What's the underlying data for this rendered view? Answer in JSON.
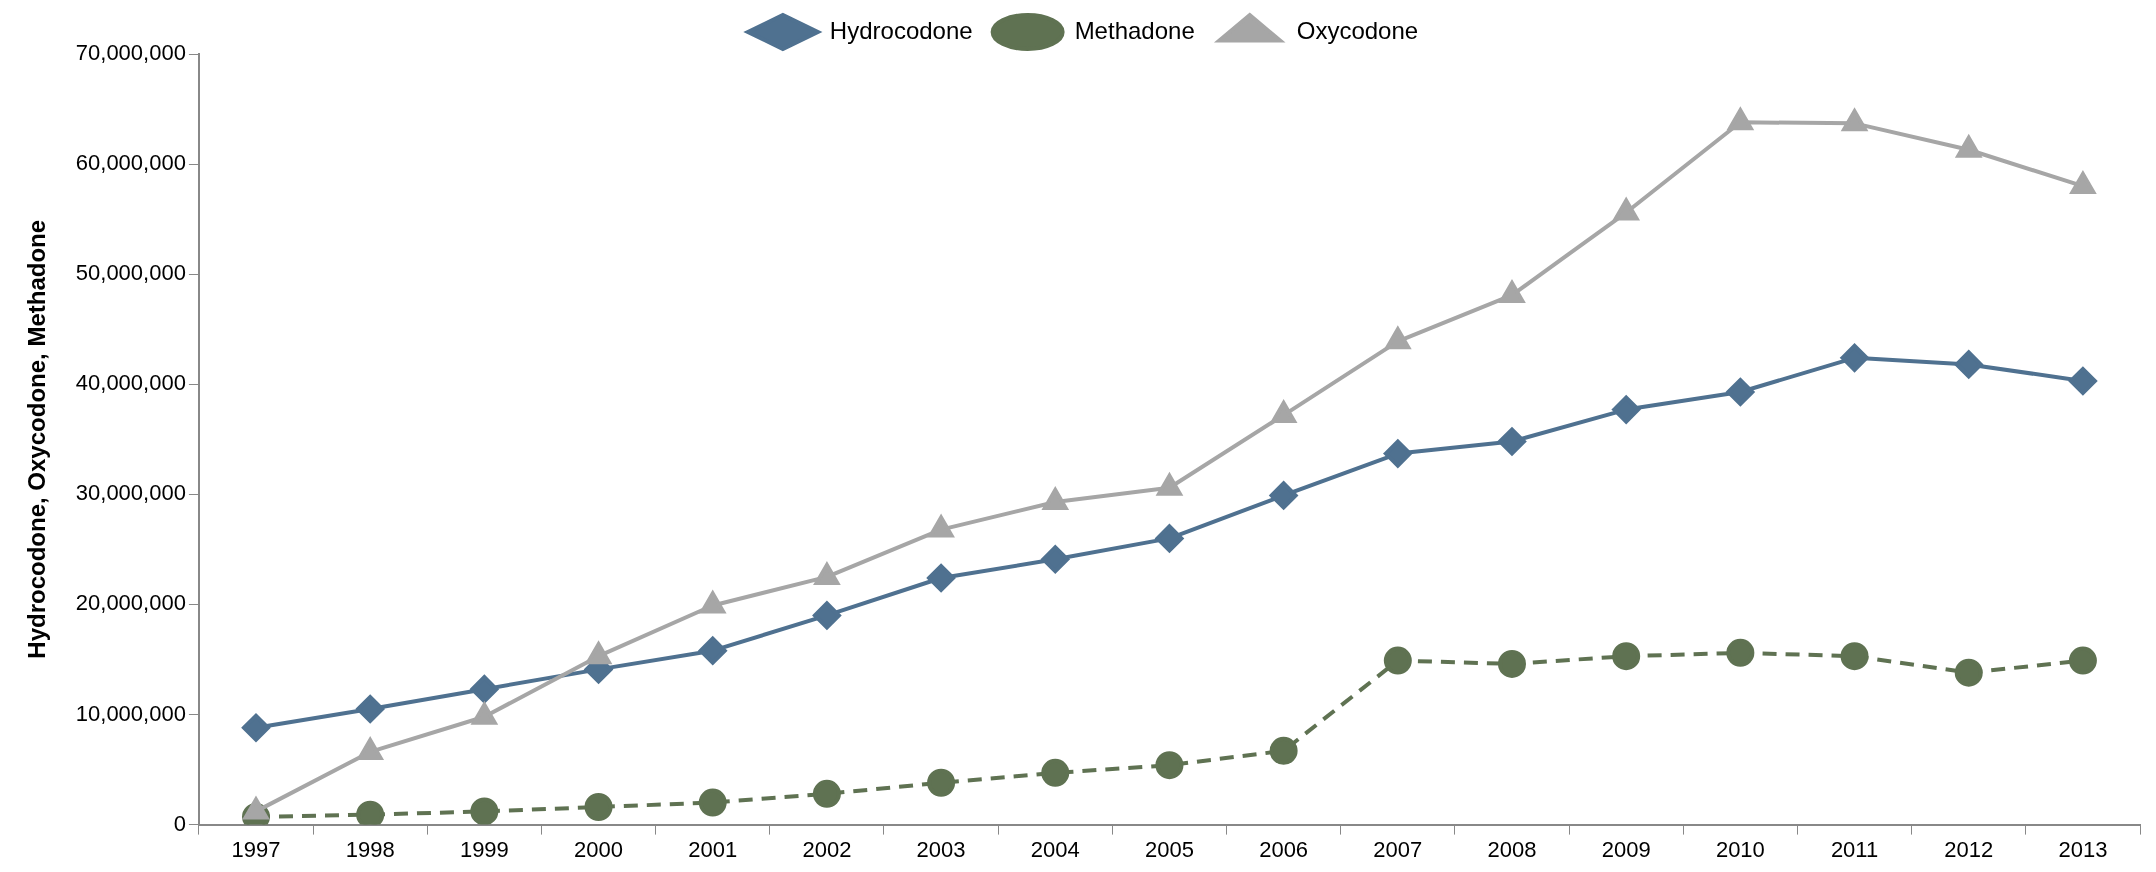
{
  "chart_data": {
    "type": "line",
    "ylabel": "Hydrocodone, Oxycodone, Methadone",
    "categories": [
      "1997",
      "1998",
      "1999",
      "2000",
      "2001",
      "2002",
      "2003",
      "2004",
      "2005",
      "2006",
      "2007",
      "2008",
      "2009",
      "2010",
      "2011",
      "2012",
      "2013"
    ],
    "series": [
      {
        "name": "Hydrocodone",
        "color": "#4f7190",
        "marker": "diamond",
        "line_style": "solid",
        "values": [
          8800000,
          10500000,
          12300000,
          14100000,
          15800000,
          19000000,
          22400000,
          24100000,
          26000000,
          29900000,
          33700000,
          34800000,
          37700000,
          39300000,
          42400000,
          41800000,
          40300000
        ]
      },
      {
        "name": "Methadone",
        "color": "#5f7252",
        "marker": "circle",
        "line_style": "dashed",
        "values": [
          700000,
          900000,
          1200000,
          1600000,
          2000000,
          2800000,
          3800000,
          4700000,
          5400000,
          6700000,
          14900000,
          14600000,
          15300000,
          15600000,
          15300000,
          13800000,
          14900000
        ]
      },
      {
        "name": "Oxycodone",
        "color": "#a6a6a6",
        "marker": "triangle",
        "line_style": "solid",
        "values": [
          1200000,
          6600000,
          9800000,
          15300000,
          19900000,
          22500000,
          26800000,
          29300000,
          30600000,
          37200000,
          43900000,
          48100000,
          55600000,
          63800000,
          63700000,
          61300000,
          58000000
        ]
      }
    ],
    "ylim": [
      0,
      70000000
    ],
    "yticks": [
      0,
      {
        "value": 10000000,
        "label": "10,000,000"
      },
      {
        "value": 20000000,
        "label": "20,000,000"
      },
      {
        "value": 30000000,
        "label": "30,000,000"
      },
      {
        "value": 40000000,
        "label": "40,000,000"
      },
      {
        "value": 50000000,
        "label": "50,000,000"
      },
      {
        "value": 60000000,
        "label": "60,000,000"
      },
      {
        "value": 70000000,
        "label": "70,000,000"
      }
    ],
    "grid": false,
    "legend": "top"
  }
}
